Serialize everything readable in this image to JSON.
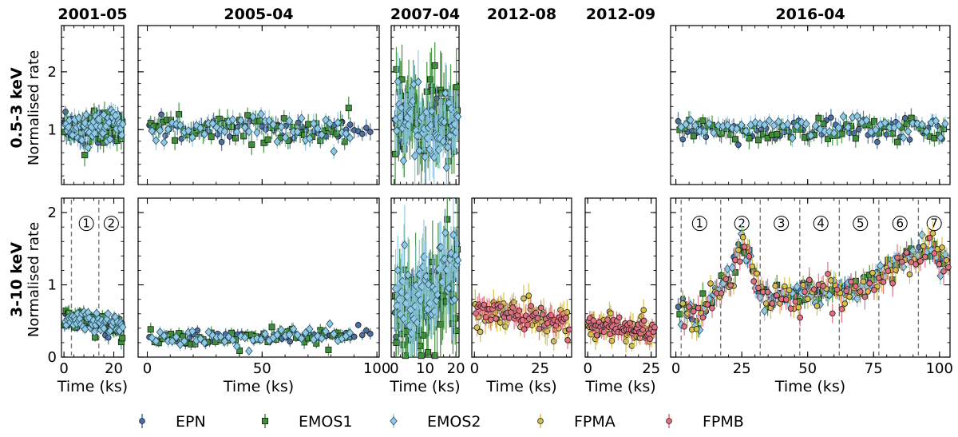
{
  "chart_data": {
    "type": "scatter",
    "note_rows": [
      "0.5-3 keV",
      "3-10 keV"
    ],
    "row_labels": [
      {
        "band": "0.5-3 keV",
        "ylabel": "Normalised rate"
      },
      {
        "band": "3-10 keV",
        "ylabel": "Normalised rate"
      }
    ],
    "xlabel": "Time (ks)",
    "top_ylim": [
      0.05,
      2.8
    ],
    "top_yticks": [
      1,
      2
    ],
    "bottom_ylim": [
      0,
      2.2
    ],
    "bottom_yticks": [
      0,
      1,
      2
    ],
    "legend": [
      {
        "name": "EPN",
        "color": "#4a6fa5",
        "marker": "circle"
      },
      {
        "name": "EMOS1",
        "color": "#3f8f3a",
        "marker": "square"
      },
      {
        "name": "EMOS2",
        "color": "#8ecae6",
        "marker": "diamond"
      },
      {
        "name": "FPMA",
        "color": "#d4c04a",
        "marker": "circle"
      },
      {
        "name": "FPMB",
        "color": "#e07080",
        "marker": "circle"
      }
    ],
    "panels": [
      {
        "title": "2001-05",
        "xlim": [
          -1,
          24
        ],
        "xticks": [
          0,
          20
        ],
        "top": {
          "series": {
            "EPN": {
              "level": 1.0,
              "noise": 0.12
            },
            "EMOS1": {
              "level": 1.0,
              "noise": 0.13
            },
            "EMOS2": {
              "level": 1.05,
              "noise": 0.13
            }
          }
        },
        "bottom": {
          "series": {
            "EPN": {
              "level": 0.5,
              "noise": 0.06
            },
            "EMOS1": {
              "level": 0.5,
              "noise": 0.07
            },
            "EMOS2": {
              "level": 0.5,
              "noise": 0.06
            }
          },
          "trend": [
            [
              0,
              0.5
            ],
            [
              3,
              0.55
            ],
            [
              10,
              0.5
            ],
            [
              24,
              0.42
            ]
          ],
          "dividers": [
            3,
            14
          ],
          "segments": [
            "①",
            "②"
          ],
          "segment_x": [
            9,
            19
          ]
        }
      },
      {
        "title": "2005-04",
        "xlim": [
          -4,
          101
        ],
        "xticks": [
          0,
          50,
          100
        ],
        "top": {
          "series": {
            "EPN": {
              "level": 1.0,
              "noise": 0.1,
              "xmax": 98
            },
            "EMOS1": {
              "level": 0.97,
              "noise": 0.13,
              "xmax": 88
            },
            "EMOS2": {
              "level": 1.03,
              "noise": 0.12,
              "xmax": 88
            }
          }
        },
        "bottom": {
          "series": {
            "EPN": {
              "level": 0.28,
              "noise": 0.05,
              "xmax": 98
            },
            "EMOS1": {
              "level": 0.27,
              "noise": 0.06,
              "xmax": 88
            },
            "EMOS2": {
              "level": 0.3,
              "noise": 0.06,
              "xmax": 88
            }
          },
          "trend": [
            [
              0,
              0.25
            ],
            [
              50,
              0.28
            ],
            [
              100,
              0.33
            ]
          ]
        }
      },
      {
        "title": "2007-04",
        "xlim": [
          -1,
          21
        ],
        "xticks": [
          0,
          10,
          20
        ],
        "top": {
          "series": {
            "EPN": {
              "level": 1.15,
              "noise": 0.2
            },
            "EMOS1": {
              "level": 1.2,
              "noise": 0.45
            },
            "EMOS2": {
              "level": 1.1,
              "noise": 0.35
            }
          }
        },
        "bottom": {
          "series": {
            "EPN": {
              "level": 0.9,
              "noise": 0.2
            },
            "EMOS1": {
              "level": 1.0,
              "noise": 0.45
            },
            "EMOS2": {
              "level": 0.9,
              "noise": 0.35
            }
          },
          "trend": [
            [
              0,
              0.7
            ],
            [
              10,
              0.8
            ],
            [
              21,
              1.25
            ]
          ]
        }
      },
      {
        "title": "2012-08",
        "xlim": [
          -1,
          37
        ],
        "xticks": [
          0,
          25
        ],
        "top": null,
        "bottom": {
          "series": {
            "FPMA": {
              "level": 0.6,
              "noise": 0.13
            },
            "FPMB": {
              "level": 0.58,
              "noise": 0.1
            }
          },
          "trend": [
            [
              0,
              0.62
            ],
            [
              36,
              0.5
            ]
          ]
        }
      },
      {
        "title": "2012-09",
        "xlim": [
          -1,
          27
        ],
        "xticks": [
          0,
          25
        ],
        "top": null,
        "bottom": {
          "series": {
            "FPMA": {
              "level": 0.42,
              "noise": 0.1
            },
            "FPMB": {
              "level": 0.4,
              "noise": 0.08
            }
          },
          "trend": [
            [
              0,
              0.42
            ],
            [
              27,
              0.38
            ]
          ]
        }
      },
      {
        "title": "2016-04",
        "xlim": [
          -2,
          104
        ],
        "xticks": [
          0,
          25,
          50,
          75,
          100
        ],
        "top": {
          "series": {
            "EPN": {
              "level": 1.0,
              "noise": 0.1
            },
            "EMOS1": {
              "level": 1.0,
              "noise": 0.12
            },
            "EMOS2": {
              "level": 1.03,
              "noise": 0.1
            }
          }
        },
        "bottom": {
          "series": {
            "EPN": {
              "level": 1.0,
              "noise": 0.08
            },
            "EMOS1": {
              "level": 1.0,
              "noise": 0.1
            },
            "EMOS2": {
              "level": 1.0,
              "noise": 0.09
            },
            "FPMA": {
              "level": 1.0,
              "noise": 0.12
            },
            "FPMB": {
              "level": 1.0,
              "noise": 0.12
            }
          },
          "trend": [
            [
              0,
              0.65
            ],
            [
              8,
              0.6
            ],
            [
              15,
              0.85
            ],
            [
              20,
              1.05
            ],
            [
              25,
              1.55
            ],
            [
              28,
              1.3
            ],
            [
              32,
              0.85
            ],
            [
              40,
              0.8
            ],
            [
              50,
              0.9
            ],
            [
              62,
              0.9
            ],
            [
              75,
              1.05
            ],
            [
              82,
              1.25
            ],
            [
              88,
              1.45
            ],
            [
              95,
              1.5
            ],
            [
              102,
              1.3
            ]
          ],
          "dividers": [
            2,
            17,
            32,
            47,
            62,
            77,
            92
          ],
          "segments": [
            "①",
            "②",
            "③",
            "④",
            "⑤",
            "⑥",
            "⑦"
          ],
          "segment_x": [
            9,
            25,
            40,
            55,
            70,
            85,
            98
          ]
        }
      }
    ]
  }
}
